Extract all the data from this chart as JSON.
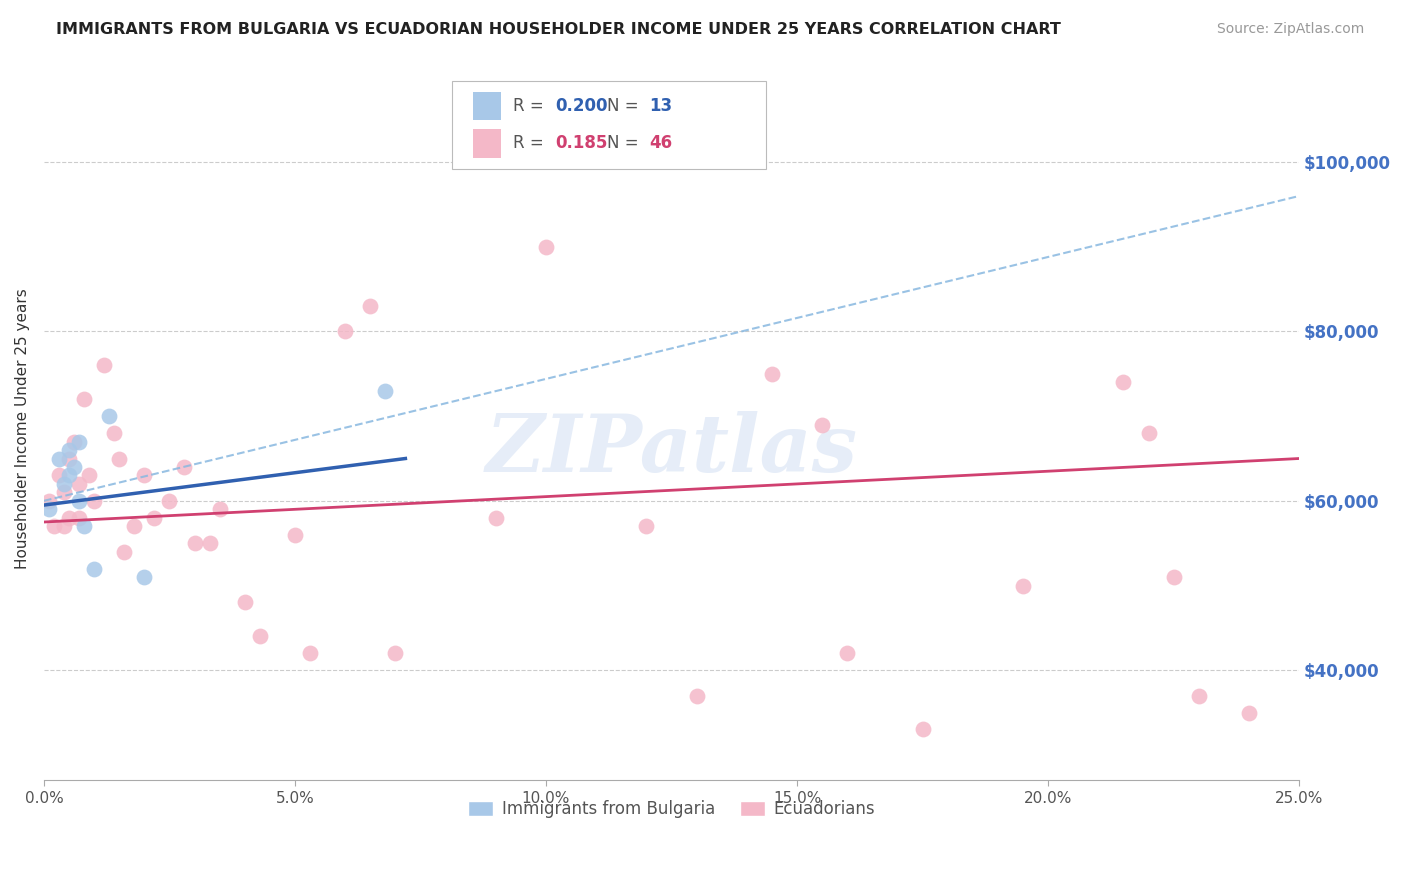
{
  "title": "IMMIGRANTS FROM BULGARIA VS ECUADORIAN HOUSEHOLDER INCOME UNDER 25 YEARS CORRELATION CHART",
  "source": "Source: ZipAtlas.com",
  "ylabel": "Householder Income Under 25 years",
  "ytick_labels": [
    "$40,000",
    "$60,000",
    "$80,000",
    "$100,000"
  ],
  "ytick_values": [
    40000,
    60000,
    80000,
    100000
  ],
  "xlim": [
    0.0,
    0.25
  ],
  "ylim": [
    27000,
    110000
  ],
  "legend_label_blue": "Immigrants from Bulgaria",
  "legend_label_pink": "Ecuadorians",
  "legend_R_blue": "0.200",
  "legend_N_blue": "13",
  "legend_R_pink": "0.185",
  "legend_N_pink": "46",
  "blue_scatter_x": [
    0.001,
    0.003,
    0.004,
    0.005,
    0.005,
    0.006,
    0.007,
    0.007,
    0.008,
    0.01,
    0.013,
    0.02,
    0.068
  ],
  "blue_scatter_y": [
    59000,
    65000,
    62000,
    66000,
    63000,
    64000,
    67000,
    60000,
    57000,
    52000,
    70000,
    51000,
    73000
  ],
  "pink_scatter_x": [
    0.001,
    0.002,
    0.003,
    0.004,
    0.004,
    0.005,
    0.005,
    0.006,
    0.007,
    0.007,
    0.008,
    0.009,
    0.01,
    0.012,
    0.014,
    0.015,
    0.016,
    0.018,
    0.02,
    0.022,
    0.025,
    0.028,
    0.03,
    0.033,
    0.035,
    0.04,
    0.043,
    0.05,
    0.053,
    0.06,
    0.065,
    0.07,
    0.09,
    0.1,
    0.12,
    0.13,
    0.145,
    0.155,
    0.16,
    0.175,
    0.195,
    0.215,
    0.22,
    0.225,
    0.23,
    0.24
  ],
  "pink_scatter_y": [
    60000,
    57000,
    63000,
    57000,
    61000,
    65000,
    58000,
    67000,
    62000,
    58000,
    72000,
    63000,
    60000,
    76000,
    68000,
    65000,
    54000,
    57000,
    63000,
    58000,
    60000,
    64000,
    55000,
    55000,
    59000,
    48000,
    44000,
    56000,
    42000,
    80000,
    83000,
    42000,
    58000,
    90000,
    57000,
    37000,
    75000,
    69000,
    42000,
    33000,
    50000,
    74000,
    68000,
    51000,
    37000,
    35000
  ],
  "blue_solid_line_x": [
    0.0,
    0.072
  ],
  "blue_solid_line_y": [
    59500,
    65000
  ],
  "blue_dash_line_x": [
    0.0,
    0.25
  ],
  "blue_dash_line_y": [
    60000,
    96000
  ],
  "pink_line_x": [
    0.0,
    0.25
  ],
  "pink_line_y": [
    57500,
    65000
  ],
  "watermark": "ZIPatlas",
  "background_color": "#ffffff",
  "scatter_size": 130,
  "blue_color": "#a8c8e8",
  "pink_color": "#f4b8c8",
  "blue_line_color": "#3060b0",
  "pink_line_color": "#d04070",
  "blue_dash_color": "#88b8e0",
  "ytick_color": "#4472c4",
  "grid_color": "#cccccc",
  "title_fontsize": 11.5,
  "source_fontsize": 10,
  "ylabel_fontsize": 11,
  "legend_fontsize": 12,
  "ytick_fontsize": 12,
  "xtick_fontsize": 11
}
